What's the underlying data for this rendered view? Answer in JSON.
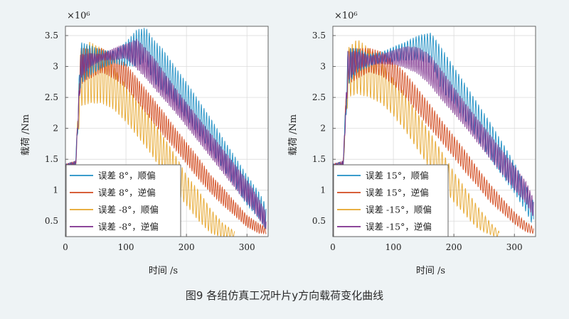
{
  "figure": {
    "caption": "图9 各组仿真工况叶片y方向载荷变化曲线",
    "background": "#eef3f5"
  },
  "series_colors": [
    "#1f8fc4",
    "#d24a1e",
    "#e5a428",
    "#7b2d8c"
  ],
  "chart_data": [
    {
      "type": "line",
      "title": "",
      "xlabel": "时间 /s",
      "ylabel": "载荷 /Nm",
      "y_multiplier_label": "×10⁶",
      "xlim": [
        0,
        335
      ],
      "ylim": [
        0.25,
        3.65
      ],
      "xticks": [
        0,
        100,
        200,
        300
      ],
      "yticks": [
        0.5,
        1,
        1.5,
        2,
        2.5,
        3,
        3.5
      ],
      "ytick_labels": [
        "0.5",
        "1",
        "1.5",
        "2",
        "2.5",
        "3",
        "3.5"
      ],
      "legend_position": "bottom-left",
      "series": [
        {
          "name": "误差 8°，顺偏",
          "x": [
            0,
            17,
            25,
            40,
            60,
            80,
            100,
            118,
            133,
            145,
            160,
            180,
            200,
            220,
            240,
            260,
            280,
            300,
            320,
            332
          ],
          "y": [
            1.4,
            1.42,
            3.05,
            3.1,
            3.12,
            3.15,
            3.2,
            3.3,
            3.35,
            3.1,
            2.95,
            2.72,
            2.45,
            2.18,
            1.9,
            1.6,
            1.3,
            1.0,
            0.75,
            0.55
          ],
          "amplitude": [
            0.02,
            0.05,
            0.35,
            0.25,
            0.15,
            0.1,
            0.2,
            0.3,
            0.28,
            0.35,
            0.35,
            0.3,
            0.3,
            0.28,
            0.27,
            0.25,
            0.25,
            0.25,
            0.22,
            0.2
          ]
        },
        {
          "name": "误差 8°，逆偏",
          "x": [
            0,
            17,
            25,
            40,
            60,
            80,
            100,
            120,
            140,
            160,
            180,
            200,
            220,
            240,
            260,
            280,
            300,
            320,
            332
          ],
          "y": [
            1.4,
            1.42,
            3.0,
            3.05,
            3.1,
            3.0,
            2.85,
            2.6,
            2.35,
            2.1,
            1.85,
            1.6,
            1.35,
            1.1,
            0.9,
            0.7,
            0.5,
            0.38,
            0.35
          ],
          "amplitude": [
            0.02,
            0.05,
            0.3,
            0.25,
            0.2,
            0.2,
            0.2,
            0.2,
            0.2,
            0.2,
            0.18,
            0.18,
            0.18,
            0.15,
            0.15,
            0.12,
            0.1,
            0.08,
            0.05
          ]
        },
        {
          "name": "误差 -8°，顺偏",
          "x": [
            0,
            17,
            25,
            40,
            60,
            80,
            100,
            120,
            140,
            160,
            180,
            200,
            220,
            240,
            260,
            280
          ],
          "y": [
            1.4,
            1.42,
            2.8,
            2.9,
            2.85,
            2.65,
            2.4,
            2.15,
            1.9,
            1.6,
            1.3,
            1.0,
            0.75,
            0.5,
            0.35,
            0.28
          ],
          "amplitude": [
            0.02,
            0.05,
            0.45,
            0.5,
            0.45,
            0.35,
            0.3,
            0.3,
            0.3,
            0.3,
            0.3,
            0.25,
            0.25,
            0.2,
            0.12,
            0.05
          ]
        },
        {
          "name": "误差 -8°，逆偏",
          "x": [
            0,
            17,
            25,
            40,
            60,
            80,
            100,
            118,
            133,
            150,
            170,
            190,
            210,
            230,
            250,
            270,
            290,
            310,
            332
          ],
          "y": [
            1.4,
            1.42,
            3.0,
            3.1,
            3.15,
            3.2,
            3.25,
            3.2,
            3.05,
            2.85,
            2.6,
            2.35,
            2.1,
            1.85,
            1.6,
            1.35,
            1.1,
            0.85,
            0.5
          ],
          "amplitude": [
            0.02,
            0.05,
            0.2,
            0.12,
            0.05,
            0.1,
            0.12,
            0.25,
            0.25,
            0.25,
            0.22,
            0.2,
            0.2,
            0.2,
            0.2,
            0.2,
            0.2,
            0.18,
            0.15
          ]
        }
      ]
    },
    {
      "type": "line",
      "title": "",
      "xlabel": "时间 /s",
      "ylabel": "载荷 /Nm",
      "y_multiplier_label": "×10⁶",
      "xlim": [
        0,
        335
      ],
      "ylim": [
        0.25,
        3.65
      ],
      "xticks": [
        0,
        100,
        200,
        300
      ],
      "yticks": [
        0.5,
        1,
        1.5,
        2,
        2.5,
        3,
        3.5
      ],
      "ytick_labels": [
        "0.5",
        "1",
        "1.5",
        "2",
        "2.5",
        "3",
        "3.5"
      ],
      "legend_position": "bottom-left",
      "series": [
        {
          "name": "误差 15°，顺偏",
          "x": [
            0,
            17,
            25,
            40,
            60,
            80,
            100,
            120,
            140,
            162,
            180,
            200,
            220,
            240,
            260,
            280,
            300,
            320,
            332
          ],
          "y": [
            1.4,
            1.42,
            3.0,
            3.1,
            3.1,
            3.15,
            3.2,
            3.25,
            3.3,
            3.3,
            2.95,
            2.7,
            2.4,
            2.1,
            1.8,
            1.5,
            1.2,
            0.85,
            0.6
          ],
          "amplitude": [
            0.02,
            0.05,
            0.3,
            0.2,
            0.1,
            0.08,
            0.12,
            0.15,
            0.2,
            0.25,
            0.35,
            0.3,
            0.3,
            0.3,
            0.3,
            0.28,
            0.25,
            0.22,
            0.2
          ]
        },
        {
          "name": "误差 15°，逆偏",
          "x": [
            0,
            17,
            25,
            40,
            60,
            80,
            100,
            120,
            140,
            160,
            180,
            200,
            220,
            240,
            260,
            280,
            300,
            320,
            332
          ],
          "y": [
            1.4,
            1.42,
            3.0,
            3.05,
            3.1,
            3.05,
            2.9,
            2.7,
            2.45,
            2.2,
            1.95,
            1.7,
            1.45,
            1.2,
            0.95,
            0.75,
            0.55,
            0.4,
            0.35
          ],
          "amplitude": [
            0.02,
            0.05,
            0.3,
            0.25,
            0.2,
            0.2,
            0.2,
            0.2,
            0.2,
            0.2,
            0.18,
            0.18,
            0.18,
            0.15,
            0.15,
            0.12,
            0.1,
            0.08,
            0.05
          ]
        },
        {
          "name": "误差 -15°，顺偏",
          "x": [
            0,
            17,
            25,
            40,
            60,
            80,
            100,
            120,
            140,
            160,
            180,
            200,
            220,
            240,
            260,
            275
          ],
          "y": [
            1.4,
            1.42,
            2.9,
            3.0,
            2.9,
            2.75,
            2.5,
            2.25,
            1.95,
            1.65,
            1.35,
            1.05,
            0.8,
            0.55,
            0.38,
            0.28
          ],
          "amplitude": [
            0.02,
            0.05,
            0.4,
            0.45,
            0.4,
            0.35,
            0.3,
            0.3,
            0.3,
            0.3,
            0.28,
            0.25,
            0.22,
            0.18,
            0.1,
            0.05
          ]
        },
        {
          "name": "误差 -15°，逆偏",
          "x": [
            0,
            17,
            25,
            40,
            60,
            80,
            100,
            120,
            140,
            160,
            180,
            200,
            220,
            240,
            260,
            280,
            300,
            320,
            332
          ],
          "y": [
            1.4,
            1.42,
            3.0,
            3.1,
            3.1,
            3.12,
            3.15,
            3.15,
            3.1,
            2.95,
            2.7,
            2.45,
            2.2,
            1.95,
            1.7,
            1.45,
            1.2,
            0.95,
            0.7
          ],
          "amplitude": [
            0.02,
            0.05,
            0.25,
            0.15,
            0.08,
            0.08,
            0.12,
            0.18,
            0.22,
            0.25,
            0.25,
            0.22,
            0.2,
            0.2,
            0.2,
            0.2,
            0.2,
            0.18,
            0.15
          ]
        }
      ]
    }
  ]
}
